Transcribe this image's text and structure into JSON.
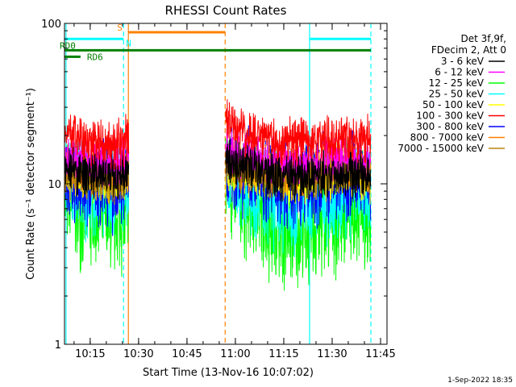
{
  "chart_data": {
    "type": "line",
    "title": "RHESSI Count Rates",
    "xlabel": "Start Time (13-Nov-16 10:07:02)",
    "ylabel": "Count Rate (s⁻¹ detector segment⁻¹)",
    "yscale": "log",
    "ylim": [
      1,
      100
    ],
    "xlim": [
      "10:07:02",
      "11:47:00"
    ],
    "x_ticks": [
      "10:15",
      "10:30",
      "10:45",
      "11:00",
      "11:15",
      "11:30",
      "11:45"
    ],
    "y_ticks": [
      "1",
      "10",
      "100"
    ],
    "timestamp": "1-Sep-2022 18:35",
    "legend_header": [
      "Det 3f,9f,",
      "FDecim 2, Att 0"
    ],
    "series": [
      {
        "name": "3 - 6 keV",
        "color": "#000000",
        "segments": [
          {
            "x": [
              "10:07",
              "10:15",
              "10:22",
              "10:27"
            ],
            "y": [
              12.5,
              11.5,
              11,
              12.5
            ]
          },
          {
            "x": [
              "10:57",
              "11:05",
              "11:15",
              "11:25",
              "11:35",
              "11:42"
            ],
            "y": [
              14,
              12.5,
              11,
              11,
              12,
              11
            ]
          }
        ]
      },
      {
        "name": "6 - 12 keV",
        "color": "#ff00ff",
        "segments": [
          {
            "x": [
              "10:07",
              "10:15",
              "10:22",
              "10:27"
            ],
            "y": [
              15,
              13.5,
              13,
              14.5
            ]
          },
          {
            "x": [
              "10:57",
              "11:05",
              "11:15",
              "11:25",
              "11:35",
              "11:42"
            ],
            "y": [
              16.5,
              15,
              13.5,
              13.5,
              14.5,
              13.5
            ]
          }
        ]
      },
      {
        "name": "12 - 25 keV",
        "color": "#00ff00",
        "segments": [
          {
            "x": [
              "10:07",
              "10:15",
              "10:22",
              "10:27"
            ],
            "y": [
              8.5,
              6.5,
              6,
              7
            ]
          },
          {
            "x": [
              "10:57",
              "11:05",
              "11:15",
              "11:25",
              "11:35",
              "11:42"
            ],
            "y": [
              10,
              7.5,
              5,
              5.5,
              7.5,
              6.5
            ]
          }
        ]
      },
      {
        "name": "25 - 50 keV",
        "color": "#00ffff",
        "segments": [
          {
            "x": [
              "10:07",
              "10:15",
              "10:22",
              "10:27"
            ],
            "y": [
              10,
              9,
              8.5,
              9.5
            ]
          },
          {
            "x": [
              "10:57",
              "11:05",
              "11:15",
              "11:25",
              "11:35",
              "11:42"
            ],
            "y": [
              12,
              9.5,
              7.5,
              7.5,
              9.5,
              8.5
            ]
          }
        ]
      },
      {
        "name": "50 - 100 keV",
        "color": "#ffff00",
        "segments": [
          {
            "x": [
              "10:07",
              "10:15",
              "10:22",
              "10:27"
            ],
            "y": [
              11,
              10.5,
              10,
              11
            ]
          },
          {
            "x": [
              "10:57",
              "11:05",
              "11:15",
              "11:25",
              "11:35",
              "11:42"
            ],
            "y": [
              12.5,
              11.5,
              10.5,
              10.5,
              11.5,
              10.5
            ]
          }
        ]
      },
      {
        "name": "100 - 300 keV",
        "color": "#ff0000",
        "segments": [
          {
            "x": [
              "10:07",
              "10:15",
              "10:22",
              "10:27"
            ],
            "y": [
              21,
              18,
              17,
              19
            ]
          },
          {
            "x": [
              "10:57",
              "11:05",
              "11:15",
              "11:25",
              "11:35",
              "11:42"
            ],
            "y": [
              24,
              20,
              18,
              19,
              20,
              18
            ]
          }
        ]
      },
      {
        "name": "300 - 800 keV",
        "color": "#0000ff",
        "segments": [
          {
            "x": [
              "10:07",
              "10:15",
              "10:22",
              "10:27"
            ],
            "y": [
              11,
              10,
              9.5,
              10.5
            ]
          },
          {
            "x": [
              "10:57",
              "11:05",
              "11:15",
              "11:25",
              "11:35",
              "11:42"
            ],
            "y": [
              13,
              11.5,
              10,
              10.5,
              11.5,
              10.5
            ]
          }
        ]
      },
      {
        "name": "800 - 7000 keV",
        "color": "#ff8000",
        "segments": [
          {
            "x": [
              "10:07",
              "10:15",
              "10:22",
              "10:27"
            ],
            "y": [
              13,
              12,
              11,
              12
            ]
          },
          {
            "x": [
              "10:57",
              "11:05",
              "11:15",
              "11:25",
              "11:35",
              "11:42"
            ],
            "y": [
              14,
              13,
              12,
              12.5,
              13,
              12
            ]
          }
        ]
      },
      {
        "name": "7000 - 15000 keV",
        "color": "#b8860b",
        "segments": [
          {
            "x": [
              "10:07",
              "10:15",
              "10:22",
              "10:27"
            ],
            "y": [
              12,
              11,
              10.5,
              11.5
            ]
          },
          {
            "x": [
              "10:57",
              "11:05",
              "11:15",
              "11:25",
              "11:35",
              "11:42"
            ],
            "y": [
              13,
              12,
              11.5,
              12,
              12.5,
              11.5
            ]
          }
        ]
      }
    ],
    "markers": {
      "vertical_lines": [
        {
          "time": "10:07:30",
          "color": "#00ffff",
          "style": "solid"
        },
        {
          "time": "10:25:20",
          "color": "#00ffff",
          "style": "dashed"
        },
        {
          "time": "10:26:50",
          "color": "#ff8000",
          "style": "solid"
        },
        {
          "time": "10:56:50",
          "color": "#ff8000",
          "style": "dashed"
        },
        {
          "time": "11:23:00",
          "color": "#00ffff",
          "style": "solid"
        },
        {
          "time": "11:42:00",
          "color": "#00ffff",
          "style": "dashed"
        }
      ],
      "horizontal_bars": [
        {
          "label": "",
          "color": "#00ffff",
          "from": "10:07:02",
          "to": "10:25:20",
          "y": 80
        },
        {
          "label": "",
          "color": "#00ffff",
          "from": "11:23:00",
          "to": "11:42:00",
          "y": 80
        },
        {
          "label": "S",
          "color": "#ff8000",
          "from": "10:26:50",
          "to": "10:56:50",
          "y": 88
        },
        {
          "label": "N",
          "color": "#00ffff",
          "from": "10:26:50",
          "to": "10:26:50",
          "y": 80
        },
        {
          "label": "RD0",
          "color": "#008000",
          "from": "10:07:02",
          "to": "11:42:00",
          "y": 68
        },
        {
          "label": "RD6",
          "color": "#008000",
          "from": "10:07:02",
          "to": "10:12:00",
          "y": 62
        }
      ]
    }
  }
}
